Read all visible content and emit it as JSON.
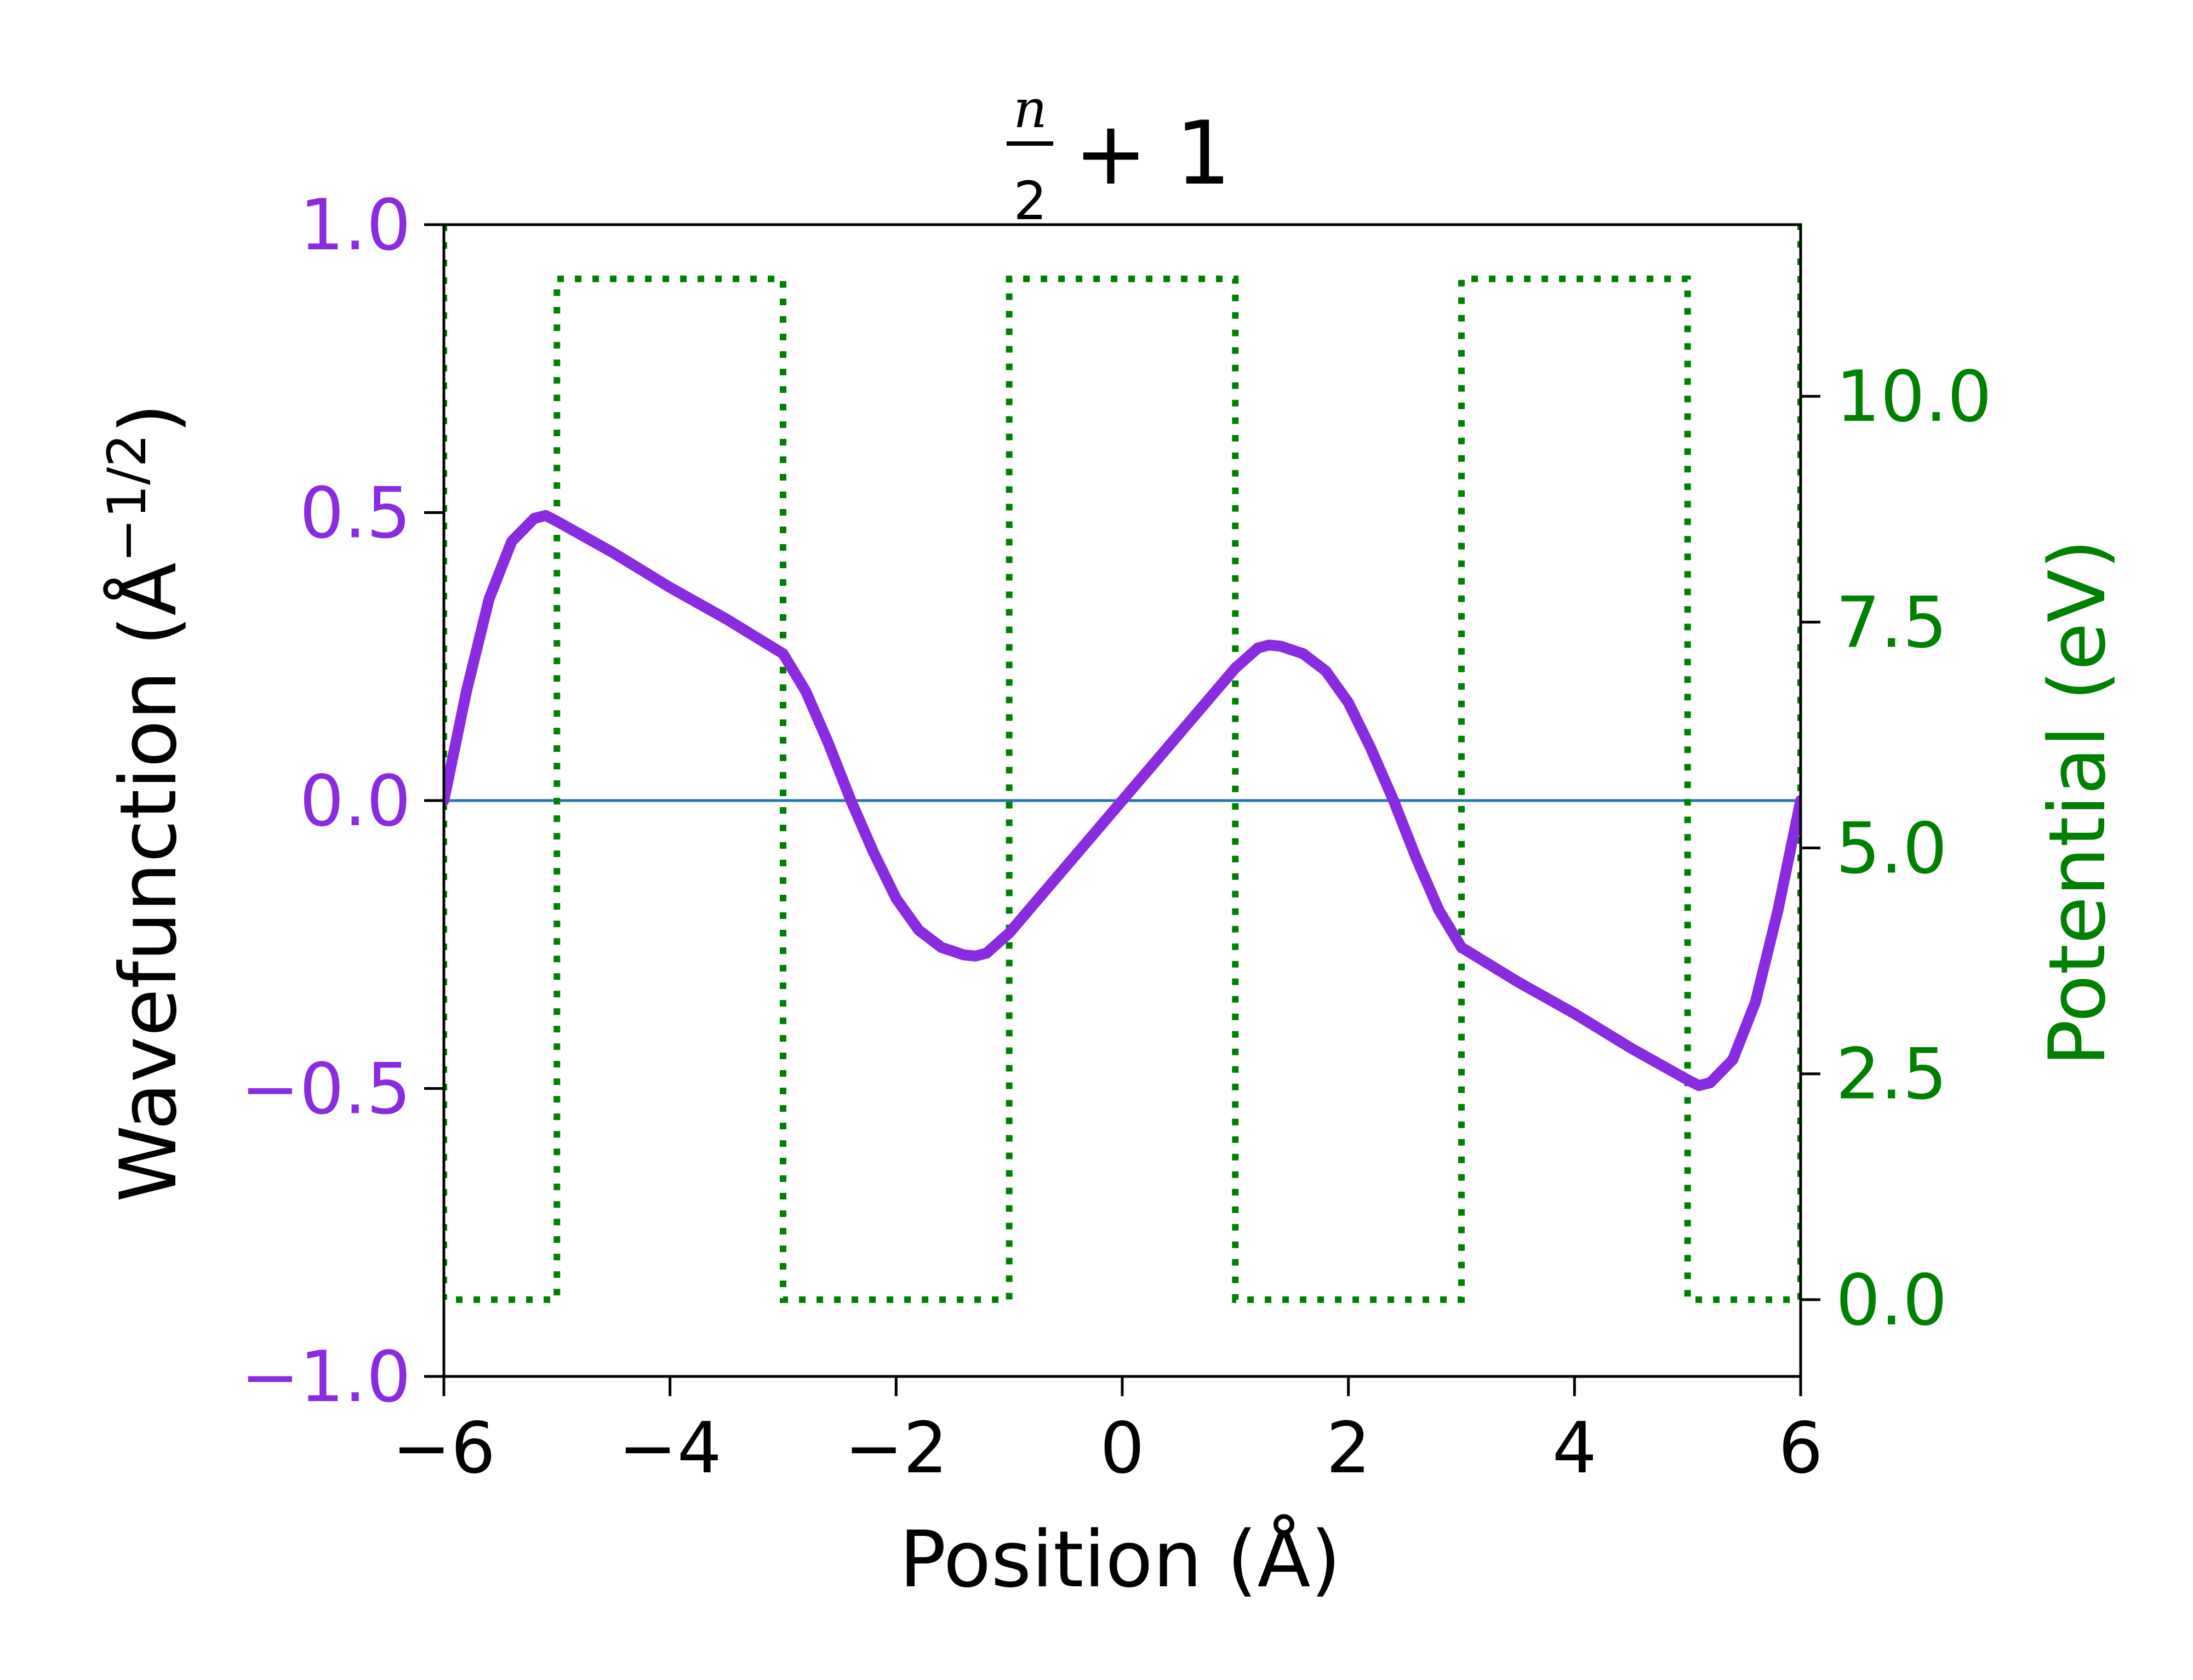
{
  "chart_data": {
    "type": "line",
    "title": {
      "numerator": "n",
      "denominator": "2",
      "suffix": "+ 1"
    },
    "xlabel": "Position (Å)",
    "ylabel": "Wavefunction (Å",
    "ylabel_exponent": "−1/2",
    "ylabel_close": ")",
    "y2label": "Potential (eV)",
    "xlim": [
      -6,
      6
    ],
    "ylim": [
      -1.0,
      1.0
    ],
    "y2lim": [
      -0.85,
      11.9
    ],
    "x_ticks": [
      -6,
      -4,
      -2,
      0,
      2,
      4,
      6
    ],
    "x_tick_labels": [
      "−6",
      "−4",
      "−2",
      "0",
      "2",
      "4",
      "6"
    ],
    "y_ticks": [
      -1.0,
      -0.5,
      0.0,
      0.5,
      1.0
    ],
    "y_tick_labels": [
      "−1.0",
      "−0.5",
      "0.0",
      "0.5",
      "1.0"
    ],
    "y2_ticks": [
      0.0,
      2.5,
      5.0,
      7.5,
      10.0
    ],
    "y2_tick_labels": [
      "0.0",
      "2.5",
      "5.0",
      "7.5",
      "10.0"
    ],
    "colors": {
      "wavefunction": "#8a2be2",
      "potential": "#008000",
      "zero_line": "#1f77b4",
      "axes": "#000000"
    },
    "series": [
      {
        "axis": "left",
        "style": "solid",
        "x": [
          -6.0,
          -5.8,
          -5.6,
          -5.4,
          -5.2,
          -5.1,
          -5.0,
          -4.5,
          -4.0,
          -3.5,
          -3.0,
          -2.8,
          -2.6,
          -2.4,
          -2.2,
          -2.0,
          -1.8,
          -1.6,
          -1.4,
          -1.3,
          -1.2,
          -1.0,
          -0.5,
          0.0,
          0.5,
          1.0,
          1.2,
          1.3,
          1.4,
          1.6,
          1.8,
          2.0,
          2.2,
          2.4,
          2.6,
          2.8,
          3.0,
          3.5,
          4.0,
          4.5,
          5.0,
          5.1,
          5.2,
          5.4,
          5.6,
          5.8,
          6.0
        ],
        "values": [
          0.0,
          0.19,
          0.35,
          0.45,
          0.49,
          0.495,
          0.485,
          0.43,
          0.37,
          0.315,
          0.255,
          0.19,
          0.1,
          0.0,
          -0.09,
          -0.17,
          -0.225,
          -0.255,
          -0.268,
          -0.27,
          -0.265,
          -0.23,
          -0.115,
          0.0,
          0.115,
          0.23,
          0.265,
          0.27,
          0.268,
          0.255,
          0.225,
          0.17,
          0.09,
          0.0,
          -0.1,
          -0.19,
          -0.255,
          -0.315,
          -0.37,
          -0.43,
          -0.485,
          -0.495,
          -0.49,
          -0.45,
          -0.35,
          -0.19,
          0.0
        ]
      },
      {
        "axis": "right",
        "style": "dotted",
        "x": [
          -6,
          -6,
          -5,
          -5,
          -3,
          -3,
          -1,
          -1,
          1,
          1,
          3,
          3,
          5,
          5,
          6,
          6
        ],
        "values": [
          11.9,
          0.0,
          0.0,
          11.3,
          11.3,
          0.0,
          0.0,
          11.3,
          11.3,
          0.0,
          0.0,
          11.3,
          11.3,
          0.0,
          0.0,
          11.9
        ]
      },
      {
        "axis": "left",
        "style": "thin",
        "x": [
          -6,
          6
        ],
        "values": [
          0,
          0
        ]
      }
    ]
  }
}
